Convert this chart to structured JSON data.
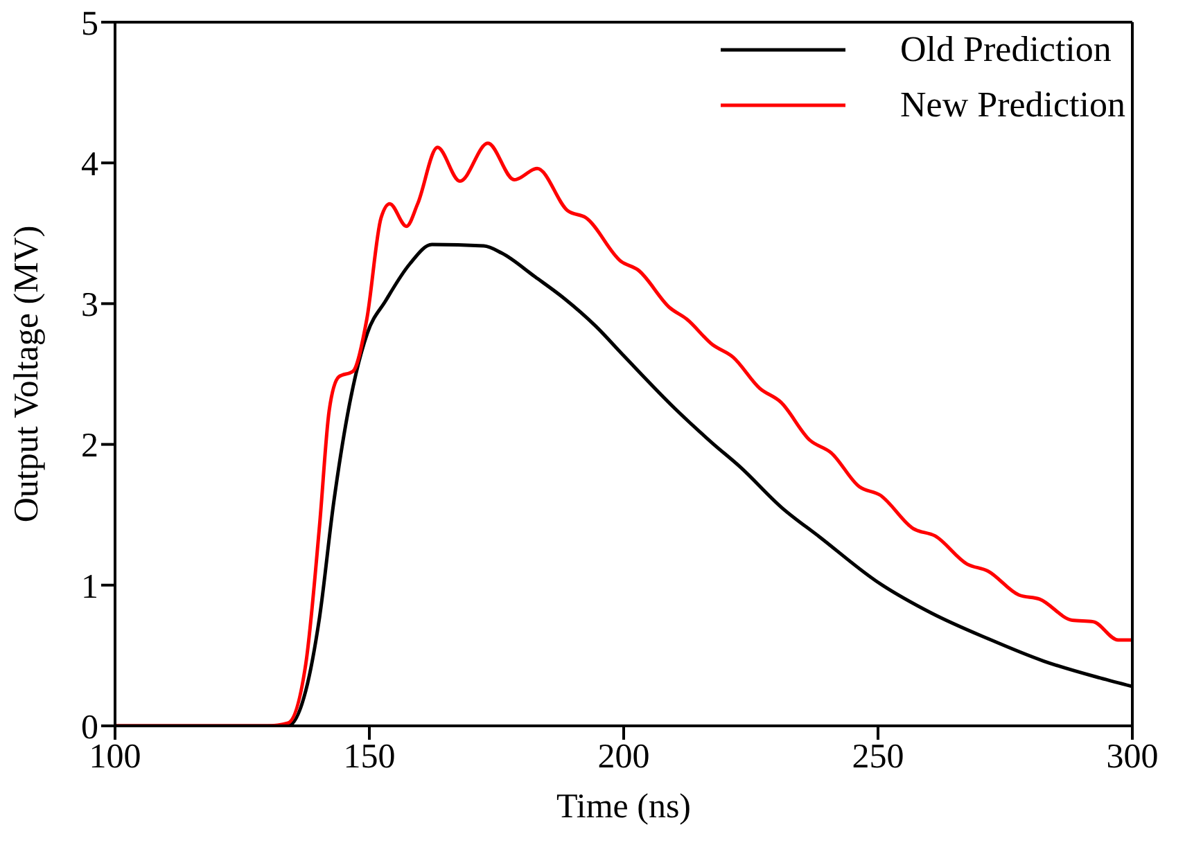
{
  "chart_data": {
    "type": "line",
    "xlabel": "Time (ns)",
    "ylabel": "Output Voltage (MV)",
    "xlim": [
      100,
      300
    ],
    "xticks": [
      100,
      150,
      200,
      250,
      300
    ],
    "ylim": [
      0,
      5
    ],
    "yticks": [
      0,
      1,
      2,
      3,
      4,
      5
    ],
    "legend": "top right",
    "marker": "none",
    "line_style": "solid",
    "series": [
      {
        "name": "Old Prediction",
        "color": "#000000",
        "x": [
          100,
          130,
          134,
          137.5,
          140.2,
          143,
          145.7,
          149.6,
          153.2,
          157.9,
          162.3,
          172.5,
          176,
          182.6,
          188.2,
          194.5,
          200,
          210.2,
          217.4,
          222.9,
          231.1,
          238.6,
          249.6,
          260.6,
          271.6,
          282.6,
          293.7,
          300
        ],
        "values": [
          0,
          0,
          0,
          0.25,
          0.77,
          1.59,
          2.21,
          2.79,
          3.02,
          3.28,
          3.42,
          3.41,
          3.36,
          3.19,
          3.04,
          2.84,
          2.63,
          2.25,
          2.01,
          1.84,
          1.55,
          1.34,
          1.03,
          0.8,
          0.62,
          0.46,
          0.34,
          0.28
        ]
      },
      {
        "name": "New Prediction",
        "color": "#ff0000",
        "x": [
          100,
          130,
          134,
          137.5,
          140.2,
          142.1,
          144,
          146.8,
          149.5,
          152.3,
          154,
          157.3,
          159.5,
          163.4,
          167.8,
          173.3,
          178.5,
          183,
          189,
          192.6,
          199.5,
          202.8,
          209.1,
          212.4,
          217.4,
          221.5,
          226.7,
          230.9,
          236.6,
          240.8,
          246.3,
          250.4,
          257,
          261.2,
          267.5,
          271.6,
          277.7,
          281.8,
          288.2,
          292.3,
          297.2,
          300
        ],
        "values": [
          0,
          0,
          0.02,
          0.44,
          1.42,
          2.24,
          2.48,
          2.52,
          2.89,
          3.61,
          3.71,
          3.55,
          3.71,
          4.11,
          3.87,
          4.14,
          3.88,
          3.96,
          3.66,
          3.61,
          3.3,
          3.24,
          2.97,
          2.89,
          2.71,
          2.62,
          2.4,
          2.3,
          2.03,
          1.94,
          1.7,
          1.64,
          1.4,
          1.35,
          1.15,
          1.1,
          0.93,
          0.9,
          0.75,
          0.74,
          0.61,
          0.61
        ]
      }
    ]
  }
}
